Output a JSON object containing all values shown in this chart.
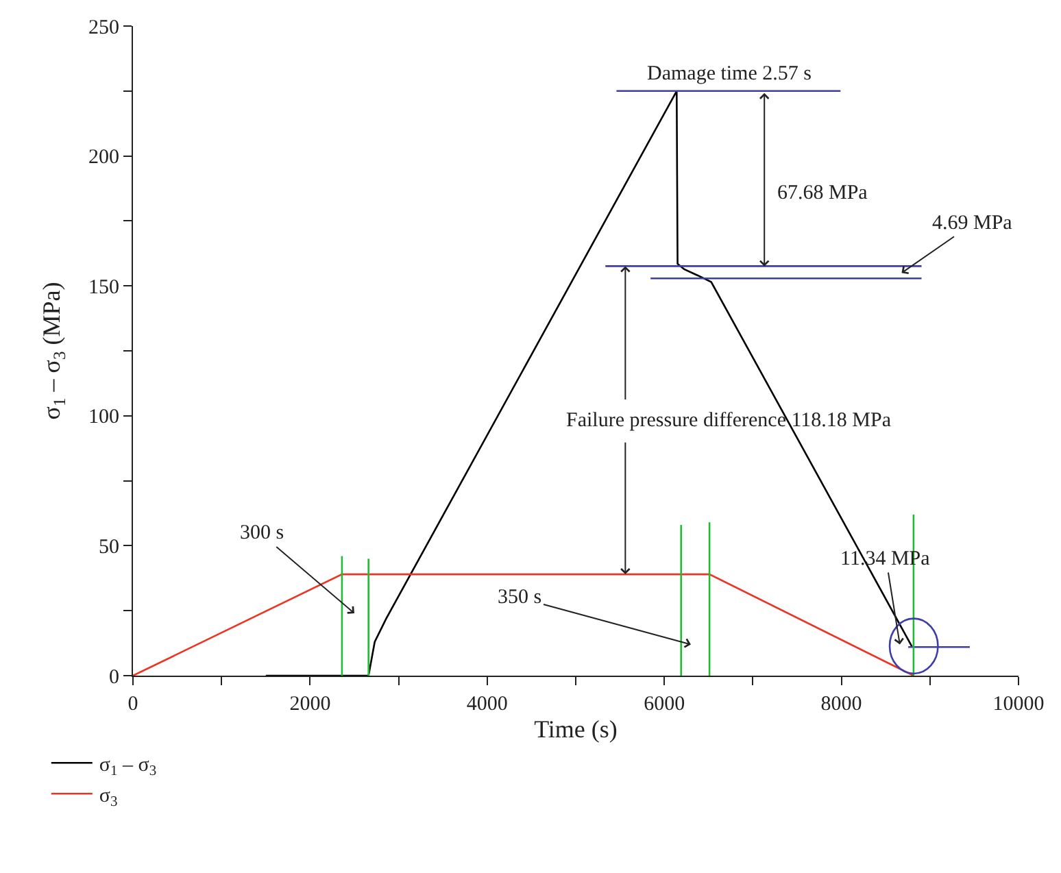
{
  "chart_data": {
    "type": "line",
    "xlabel": "Time (s)",
    "ylabel": "σ$_{1}$ – σ$_{3}$ (MPa)",
    "xlim": [
      0,
      10000
    ],
    "ylim": [
      0,
      250
    ],
    "xticks": [
      0,
      {
        "value": 1000,
        "label": null
      },
      2000,
      {
        "value": 3000,
        "label": null
      },
      4000,
      {
        "value": 5000,
        "label": null
      },
      6000,
      {
        "value": 7000,
        "label": null
      },
      8000,
      {
        "value": 9000,
        "label": null
      },
      10000
    ],
    "yticks": [
      0,
      {
        "value": 25,
        "label": null
      },
      50,
      {
        "value": 75,
        "label": null
      },
      100,
      {
        "value": 125,
        "label": null
      },
      150,
      {
        "value": 175,
        "label": null
      },
      200,
      {
        "value": 225,
        "label": null
      },
      250
    ],
    "legend": "bottom left",
    "marker": "none",
    "line_style": "solid",
    "series": [
      {
        "name": "σ$_{1}$ – σ$_{3}$",
        "color": "#000000",
        "x": [
          1500,
          2660,
          2730,
          2860,
          6140,
          6150,
          6225,
          6430,
          6530,
          8800
        ],
        "values": [
          0,
          0,
          13,
          22,
          225,
          158.5,
          156.4,
          153.2,
          151.5,
          11
        ]
      },
      {
        "name": "σ$_{3}$",
        "color": "#ee3322",
        "x": [
          0,
          2360,
          6510,
          8815
        ],
        "values": [
          0,
          39,
          39,
          0
        ]
      },
      {
        "color": "#3d3dab",
        "x": [
          5460,
          7990
        ],
        "values": [
          225,
          225
        ]
      },
      {
        "color": "#3d3dab",
        "x": [
          5335,
          8905
        ],
        "values": [
          157.6,
          157.6
        ]
      },
      {
        "color": "#3d3dab",
        "x": [
          5845,
          8905
        ],
        "values": [
          152.9,
          152.9
        ]
      },
      {
        "color": "#3d3dab",
        "x": [
          8755,
          9450
        ],
        "values": [
          11,
          11
        ]
      },
      {
        "color": "#22bb33",
        "x": [
          2360,
          2360
        ],
        "values": [
          0,
          46
        ]
      },
      {
        "color": "#22bb33",
        "x": [
          2660,
          2660
        ],
        "values": [
          0,
          45
        ]
      },
      {
        "color": "#22bb33",
        "x": [
          6190,
          6190
        ],
        "values": [
          0,
          58
        ]
      },
      {
        "color": "#22bb33",
        "x": [
          6510,
          6510
        ],
        "values": [
          0,
          59
        ]
      },
      {
        "color": "#22bb33",
        "x": [
          8815,
          8815
        ],
        "values": [
          0,
          62
        ]
      }
    ],
    "annotations": [
      {
        "text": "Damage time 2.57 s",
        "x": 6730,
        "y": 225
      },
      "67.68 MPa",
      {
        "text": "4.69 MPa",
        "x": 8680,
        "y": 155
      },
      {
        "text": "Failure pressure difference 118.18 MPa",
        "x": 5560,
        "y": 39
      },
      "300 s",
      "350 s",
      "11.34 MPa"
    ]
  }
}
